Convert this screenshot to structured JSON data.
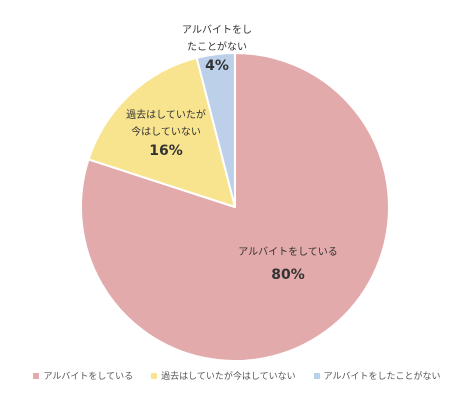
{
  "chart_data": {
    "type": "pie",
    "categories": [
      "アルバイトをしている",
      "過去はしていたが今はしていない",
      "アルバイトをしたことがない"
    ],
    "values": [
      80,
      16,
      4
    ],
    "value_labels": [
      "80%",
      "16%",
      "4%"
    ],
    "slice_label_lines": [
      [
        "アルバイトをしている"
      ],
      [
        "過去はしていたが",
        "今はしていない"
      ],
      [
        "アルバイトをし",
        "たことがない"
      ]
    ],
    "colors": [
      "#e2aaab",
      "#f8e48e",
      "#bcd0ea"
    ],
    "legend_position": "bottom",
    "title": ""
  }
}
